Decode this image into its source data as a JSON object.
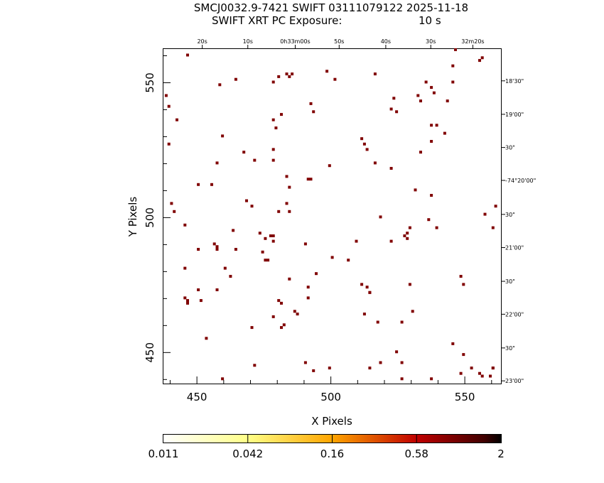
{
  "header": {
    "title_line1": "SMCJ0032.9-7421 SWIFT 03111079122 2025-11-18",
    "title_line2_left": "SWIFT XRT PC Exposure:",
    "title_line2_right": "10 s"
  },
  "colors": {
    "pixel": "#800000",
    "axis": "#000000",
    "background": "#ffffff"
  },
  "chart_data": {
    "type": "scatter",
    "title": "SMCJ0032.9-7421 SWIFT 03111079122 2025-11-18",
    "subtitle": "SWIFT XRT PC Exposure: 10 s",
    "xlabel": "X Pixels",
    "ylabel": "Y Pixels",
    "xlim": [
      437.5,
      563.5
    ],
    "ylim": [
      438.5,
      562.5
    ],
    "x_ticks": [
      450,
      500,
      550
    ],
    "y_ticks": [
      450,
      500,
      550
    ],
    "grid": false,
    "top_ticks": [
      "20s",
      "10s",
      "0h33m00s",
      "50s",
      "40s",
      "30s",
      "32m20s"
    ],
    "top_ticks_x": [
      452.0,
      469.0,
      486.7,
      503.1,
      520.5,
      537.3,
      553.0
    ],
    "right_ticks": [
      "18'30\"",
      "19'00\"",
      "30\"",
      "-74°20'00\"",
      "30\"",
      "21'00\"",
      "30\"",
      "22'00\"",
      "30\"",
      "23'00\""
    ],
    "right_ticks_y": [
      550.7,
      538.3,
      526.0,
      513.8,
      501.2,
      488.9,
      476.4,
      464.2,
      451.7,
      439.5
    ],
    "points": [
      [
        446,
        560
      ],
      [
        442,
        536
      ],
      [
        438,
        545
      ],
      [
        439,
        541
      ],
      [
        437,
        532
      ],
      [
        439,
        527
      ],
      [
        440,
        505
      ],
      [
        441,
        502
      ],
      [
        445,
        497
      ],
      [
        445,
        481
      ],
      [
        445,
        470
      ],
      [
        446,
        468
      ],
      [
        446,
        469
      ],
      [
        453,
        455
      ],
      [
        450,
        473
      ],
      [
        450,
        488
      ],
      [
        450,
        512
      ],
      [
        455,
        512
      ],
      [
        457,
        520
      ],
      [
        459,
        530
      ],
      [
        458,
        549
      ],
      [
        464,
        551
      ],
      [
        467,
        524
      ],
      [
        471,
        521
      ],
      [
        463,
        495
      ],
      [
        464,
        488
      ],
      [
        468,
        506
      ],
      [
        470,
        504
      ],
      [
        460,
        481
      ],
      [
        462,
        478
      ],
      [
        456,
        490
      ],
      [
        457,
        488
      ],
      [
        457,
        489
      ],
      [
        457,
        473
      ],
      [
        451,
        469
      ],
      [
        459,
        440
      ],
      [
        471,
        445
      ],
      [
        470,
        459
      ],
      [
        473,
        494
      ],
      [
        474,
        487
      ],
      [
        475,
        484
      ],
      [
        476,
        484
      ],
      [
        475,
        492
      ],
      [
        477,
        493
      ],
      [
        478,
        493
      ],
      [
        478,
        491
      ],
      [
        478,
        463
      ],
      [
        480,
        469
      ],
      [
        481,
        468
      ],
      [
        481,
        459
      ],
      [
        482,
        460
      ],
      [
        486,
        465
      ],
      [
        487,
        464
      ],
      [
        484,
        477
      ],
      [
        483,
        505
      ],
      [
        480,
        502
      ],
      [
        484,
        502
      ],
      [
        483,
        515
      ],
      [
        484,
        511
      ],
      [
        480,
        552
      ],
      [
        478,
        550
      ],
      [
        481,
        538
      ],
      [
        478,
        536
      ],
      [
        479,
        533
      ],
      [
        478,
        521
      ],
      [
        478,
        525
      ],
      [
        484,
        552
      ],
      [
        485,
        553
      ],
      [
        483,
        553
      ],
      [
        492,
        542
      ],
      [
        493,
        539
      ],
      [
        491,
        514
      ],
      [
        492,
        514
      ],
      [
        490,
        490
      ],
      [
        494,
        479
      ],
      [
        491,
        474
      ],
      [
        491,
        470
      ],
      [
        490,
        446
      ],
      [
        493,
        443
      ],
      [
        499,
        444
      ],
      [
        499,
        519
      ],
      [
        498,
        554
      ],
      [
        501,
        551
      ],
      [
        500,
        485
      ],
      [
        506,
        484
      ],
      [
        509,
        491
      ],
      [
        514,
        472
      ],
      [
        513,
        474
      ],
      [
        514,
        472
      ],
      [
        511,
        475
      ],
      [
        512,
        464
      ],
      [
        514,
        444
      ],
      [
        517,
        461
      ],
      [
        518,
        446
      ],
      [
        518,
        500
      ],
      [
        516,
        520
      ],
      [
        512,
        527
      ],
      [
        511,
        529
      ],
      [
        513,
        525
      ],
      [
        516,
        553
      ],
      [
        523,
        544
      ],
      [
        522,
        540
      ],
      [
        524,
        539
      ],
      [
        522,
        518
      ],
      [
        522,
        491
      ],
      [
        527,
        493
      ],
      [
        528,
        494
      ],
      [
        529,
        496
      ],
      [
        528,
        492
      ],
      [
        529,
        475
      ],
      [
        530,
        465
      ],
      [
        526,
        461
      ],
      [
        526,
        446
      ],
      [
        524,
        450
      ],
      [
        526,
        440
      ],
      [
        537,
        534
      ],
      [
        537,
        528
      ],
      [
        533,
        524
      ],
      [
        537,
        508
      ],
      [
        531,
        510
      ],
      [
        536,
        499
      ],
      [
        539,
        496
      ],
      [
        535,
        550
      ],
      [
        537,
        548
      ],
      [
        538,
        546
      ],
      [
        532,
        545
      ],
      [
        533,
        543
      ],
      [
        539,
        534
      ],
      [
        542,
        531
      ],
      [
        543,
        543
      ],
      [
        545,
        550
      ],
      [
        546,
        562
      ],
      [
        550,
        564
      ],
      [
        545,
        556
      ],
      [
        555,
        558
      ],
      [
        556,
        559
      ],
      [
        557,
        501
      ],
      [
        560,
        496
      ],
      [
        561,
        504
      ],
      [
        563,
        492
      ],
      [
        563,
        489
      ],
      [
        560,
        444
      ],
      [
        552,
        444
      ],
      [
        548,
        478
      ],
      [
        549,
        475
      ],
      [
        548,
        442
      ],
      [
        556,
        441
      ],
      [
        559,
        441
      ],
      [
        549,
        449
      ],
      [
        555,
        442
      ],
      [
        560,
        444
      ],
      [
        537,
        440
      ],
      [
        545,
        453
      ],
      [
        561,
        565
      ],
      [
        545,
        564
      ]
    ],
    "colorbar": {
      "labels": [
        "0.011",
        "0.042",
        "0.16",
        "0.58",
        "2"
      ],
      "scale": "log",
      "stops": [
        "#ffffff",
        "#ffff80",
        "#ffd700",
        "#ff8000",
        "#c00000",
        "#800000",
        "#000000"
      ]
    }
  }
}
